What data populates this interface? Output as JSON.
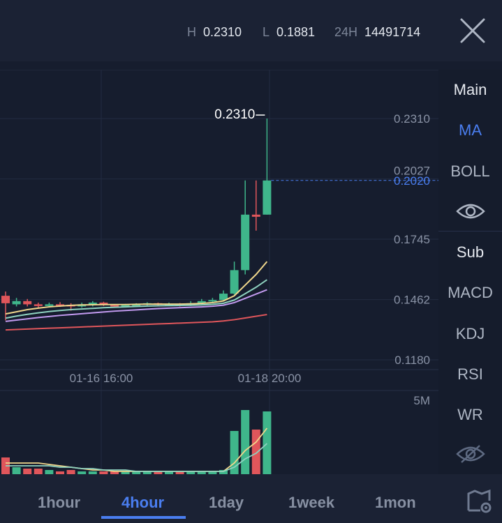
{
  "header": {
    "high_label": "H",
    "high_value": "0.2310",
    "low_label": "L",
    "low_value": "0.1881",
    "vol_label": "24H",
    "vol_value": "14491714"
  },
  "price_axis": [
    "0.2310",
    "0.2027",
    "0.1745",
    "0.1462",
    "0.1180"
  ],
  "current_price": "0.2020",
  "high_marker": "0.2310",
  "time_labels": [
    "01-16 16:00",
    "01-18 20:00"
  ],
  "volume_axis_label": "5M",
  "side_panel": {
    "main_label": "Main",
    "ma_label": "MA",
    "boll_label": "BOLL",
    "sub_label": "Sub",
    "macd_label": "MACD",
    "kdj_label": "KDJ",
    "rsi_label": "RSI",
    "wr_label": "WR"
  },
  "tabs": [
    "1hour",
    "4hour",
    "1day",
    "1week",
    "1mon"
  ],
  "active_tab": "4hour",
  "colors": {
    "up": "#3fb68b",
    "down": "#e0565b",
    "accent": "#4a7ef0",
    "ma1": "#f0d78c",
    "ma2": "#8fd3c0",
    "ma3": "#c39bf0",
    "ma4": "#e0565b"
  },
  "chart_data": {
    "type": "candlestick",
    "ylim": [
      0.118,
      0.231
    ],
    "candles": [
      {
        "o": 0.148,
        "c": 0.1445,
        "h": 0.15,
        "l": 0.1365
      },
      {
        "o": 0.144,
        "c": 0.1455,
        "h": 0.147,
        "l": 0.143
      },
      {
        "o": 0.1455,
        "c": 0.144,
        "h": 0.1465,
        "l": 0.143
      },
      {
        "o": 0.144,
        "c": 0.1432,
        "h": 0.1448,
        "l": 0.1425
      },
      {
        "o": 0.1432,
        "c": 0.144,
        "h": 0.1448,
        "l": 0.1425
      },
      {
        "o": 0.144,
        "c": 0.1435,
        "h": 0.145,
        "l": 0.1428
      },
      {
        "o": 0.1438,
        "c": 0.143,
        "h": 0.1445,
        "l": 0.141
      },
      {
        "o": 0.143,
        "c": 0.144,
        "h": 0.1448,
        "l": 0.1424
      },
      {
        "o": 0.144,
        "c": 0.1448,
        "h": 0.1455,
        "l": 0.143
      },
      {
        "o": 0.1448,
        "c": 0.144,
        "h": 0.1452,
        "l": 0.1432
      },
      {
        "o": 0.1436,
        "c": 0.1435,
        "h": 0.144,
        "l": 0.1425
      },
      {
        "o": 0.1434,
        "c": 0.1436,
        "h": 0.1442,
        "l": 0.1425
      },
      {
        "o": 0.1436,
        "c": 0.1438,
        "h": 0.1445,
        "l": 0.143
      },
      {
        "o": 0.1438,
        "c": 0.1445,
        "h": 0.145,
        "l": 0.1432
      },
      {
        "o": 0.1445,
        "c": 0.1438,
        "h": 0.1448,
        "l": 0.1432
      },
      {
        "o": 0.1438,
        "c": 0.1442,
        "h": 0.1448,
        "l": 0.1432
      },
      {
        "o": 0.1442,
        "c": 0.1438,
        "h": 0.1446,
        "l": 0.143
      },
      {
        "o": 0.1438,
        "c": 0.1445,
        "h": 0.1455,
        "l": 0.1432
      },
      {
        "o": 0.1445,
        "c": 0.1455,
        "h": 0.1465,
        "l": 0.144
      },
      {
        "o": 0.1455,
        "c": 0.146,
        "h": 0.147,
        "l": 0.1448
      },
      {
        "o": 0.146,
        "c": 0.149,
        "h": 0.1505,
        "l": 0.1455
      },
      {
        "o": 0.149,
        "c": 0.16,
        "h": 0.164,
        "l": 0.1485
      },
      {
        "o": 0.16,
        "c": 0.186,
        "h": 0.202,
        "l": 0.158
      },
      {
        "o": 0.186,
        "c": 0.185,
        "h": 0.202,
        "l": 0.1785
      },
      {
        "o": 0.186,
        "c": 0.202,
        "h": 0.231,
        "l": 0.186
      }
    ],
    "ma": [
      {
        "color": "ma1",
        "values": [
          0.1395,
          0.1405,
          0.1415,
          0.1422,
          0.1428,
          0.1432,
          0.1435,
          0.1437,
          0.1438,
          0.1439,
          0.1439,
          0.1439,
          0.144,
          0.1441,
          0.1441,
          0.1441,
          0.1441,
          0.1442,
          0.1444,
          0.1448,
          0.1456,
          0.148,
          0.153,
          0.158,
          0.164
        ]
      },
      {
        "color": "ma2",
        "values": [
          0.1375,
          0.1385,
          0.1393,
          0.14,
          0.1406,
          0.1411,
          0.1415,
          0.1418,
          0.1421,
          0.1424,
          0.1426,
          0.1428,
          0.143,
          0.1432,
          0.1433,
          0.1434,
          0.1435,
          0.1436,
          0.1437,
          0.144,
          0.1445,
          0.146,
          0.149,
          0.152,
          0.1555
        ]
      },
      {
        "color": "ma3",
        "values": [
          0.136,
          0.1366,
          0.1372,
          0.1378,
          0.1383,
          0.1388,
          0.1392,
          0.1396,
          0.14,
          0.1404,
          0.1408,
          0.1411,
          0.1414,
          0.1417,
          0.142,
          0.1422,
          0.1424,
          0.1426,
          0.1428,
          0.1431,
          0.1436,
          0.1448,
          0.1468,
          0.1488,
          0.1508
        ]
      },
      {
        "color": "ma4",
        "values": [
          0.132,
          0.1322,
          0.1324,
          0.1326,
          0.1328,
          0.133,
          0.1332,
          0.1334,
          0.1336,
          0.1338,
          0.134,
          0.1342,
          0.1344,
          0.1346,
          0.1348,
          0.135,
          0.1352,
          0.1354,
          0.1356,
          0.1358,
          0.1362,
          0.1368,
          0.1376,
          0.1384,
          0.1392
        ]
      }
    ],
    "volume_max": 5,
    "volumes": [
      1.2,
      0.5,
      0.4,
      0.4,
      0.3,
      0.2,
      0.3,
      0.2,
      0.2,
      0.2,
      0.2,
      0.2,
      0.2,
      0.2,
      0.2,
      0.2,
      0.2,
      0.2,
      0.2,
      0.2,
      0.3,
      3.1,
      4.6,
      3.2,
      4.5
    ],
    "volume_ma": [
      {
        "color": "ma1",
        "values": [
          0.8,
          0.8,
          0.8,
          0.8,
          0.7,
          0.6,
          0.5,
          0.4,
          0.3,
          0.3,
          0.2,
          0.2,
          0.2,
          0.2,
          0.2,
          0.2,
          0.2,
          0.2,
          0.2,
          0.2,
          0.2,
          0.8,
          1.7,
          2.3,
          3.3
        ]
      },
      {
        "color": "ma2",
        "values": [
          0.6,
          0.6,
          0.6,
          0.6,
          0.6,
          0.5,
          0.5,
          0.4,
          0.4,
          0.3,
          0.3,
          0.3,
          0.2,
          0.2,
          0.2,
          0.2,
          0.2,
          0.2,
          0.2,
          0.2,
          0.2,
          0.5,
          1.1,
          1.5,
          2.2
        ]
      }
    ]
  }
}
